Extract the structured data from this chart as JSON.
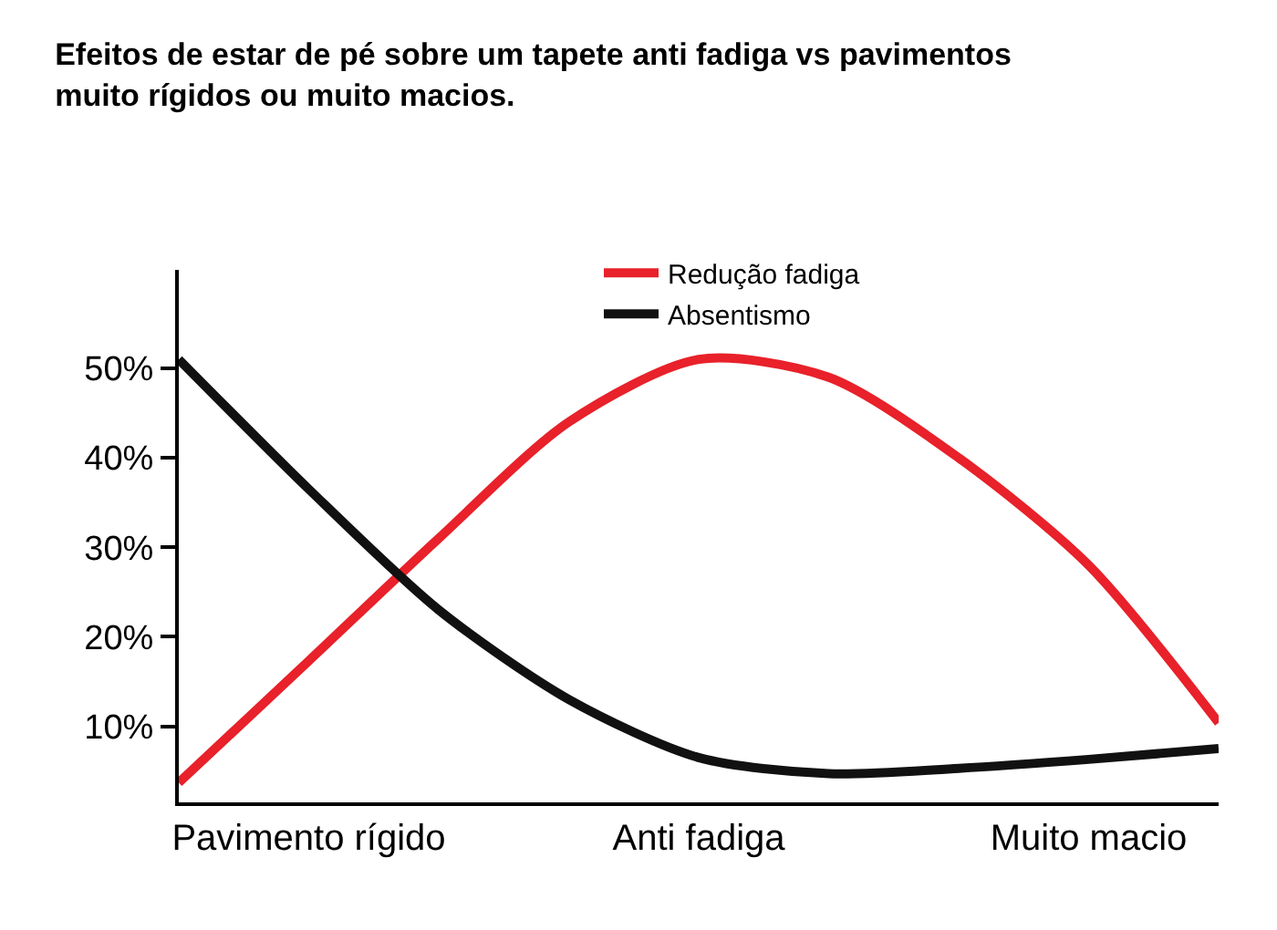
{
  "chart_data": {
    "type": "line",
    "title": "Efeitos de estar de pé sobre um tapete anti fadiga vs pavimentos\nmuito rígidos ou muito macios.",
    "categories": [
      null,
      "Pavimento rígido",
      null,
      null,
      "Anti fadiga",
      null,
      null,
      "Muito macio",
      null
    ],
    "ylim": [
      1.5,
      61
    ],
    "yticks": [
      {
        "value": 10,
        "label": "10%"
      },
      {
        "value": 20,
        "label": "20%"
      },
      {
        "value": 30,
        "label": "30%"
      },
      {
        "value": 40,
        "label": "40%"
      },
      {
        "value": 50,
        "label": "50%"
      }
    ],
    "series": [
      {
        "name": "Redução fadiga",
        "color": "#e8212a",
        "values": [
          3.7,
          17.3,
          31,
          44,
          51,
          49,
          40,
          28,
          10.4
        ]
      },
      {
        "name": "Absentismo",
        "color": "#111111",
        "values": [
          51,
          36.5,
          23,
          13,
          6.5,
          4.7,
          5.3,
          6.3,
          7.5
        ]
      }
    ],
    "legend": "top",
    "marker": "none",
    "line_style": "solid"
  }
}
